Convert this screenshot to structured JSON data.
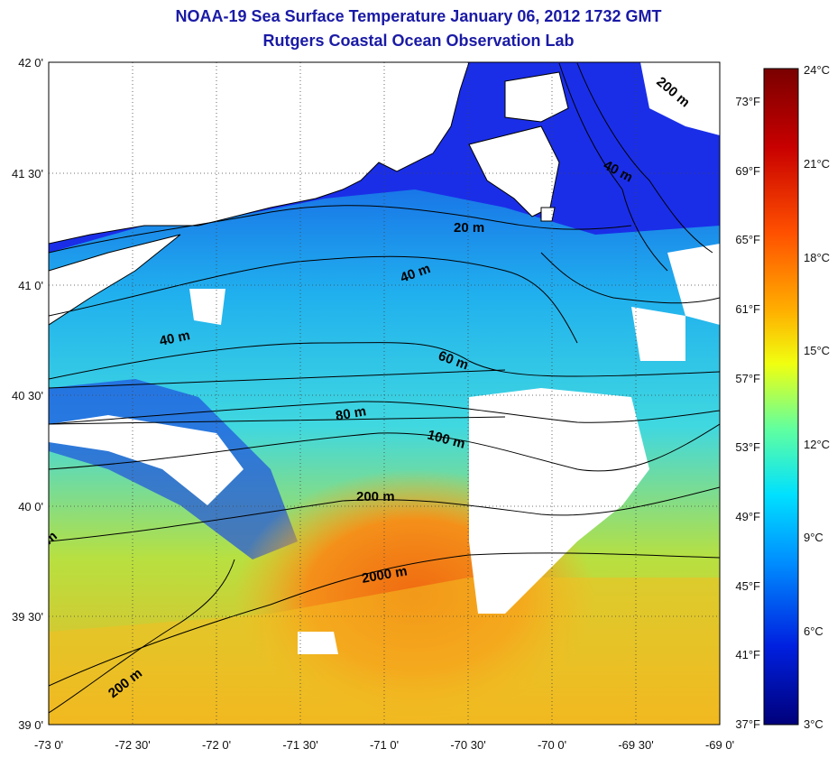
{
  "header": {
    "title": "NOAA-19 Sea Surface Temperature January 06, 2012 1732 GMT",
    "subtitle": "Rutgers Coastal Ocean Observation Lab"
  },
  "axes": {
    "lat_labels": [
      "42 0'",
      "41 30'",
      "41 0'",
      "40 30'",
      "40 0'",
      "39 30'",
      "39 0'"
    ],
    "lon_labels": [
      "-73 0'",
      "-72 30'",
      "-72 0'",
      "-71 30'",
      "-71 0'",
      "-70 30'",
      "-70 0'",
      "-69 30'",
      "-69 0'"
    ]
  },
  "colorbar": {
    "celsius_labels": [
      "24°C",
      "21°C",
      "18°C",
      "15°C",
      "12°C",
      "9°C",
      "6°C",
      "3°C"
    ],
    "fahrenheit_labels": [
      "73°F",
      "69°F",
      "65°F",
      "61°F",
      "57°F",
      "53°F",
      "49°F",
      "45°F",
      "41°F",
      "37°F"
    ],
    "colors": [
      "#7a0000",
      "#d01000",
      "#ff6a00",
      "#ffc000",
      "#e8ff20",
      "#60ffa0",
      "#00e0ff",
      "#0080ff",
      "#0020e0",
      "#00007a"
    ]
  },
  "contours": {
    "labels": [
      "200 m",
      "40 m",
      "20 m",
      "40 m",
      "40 m",
      "60 m",
      "80 m",
      "100 m",
      "200 m",
      "2000 m",
      "200 m",
      "m"
    ]
  }
}
